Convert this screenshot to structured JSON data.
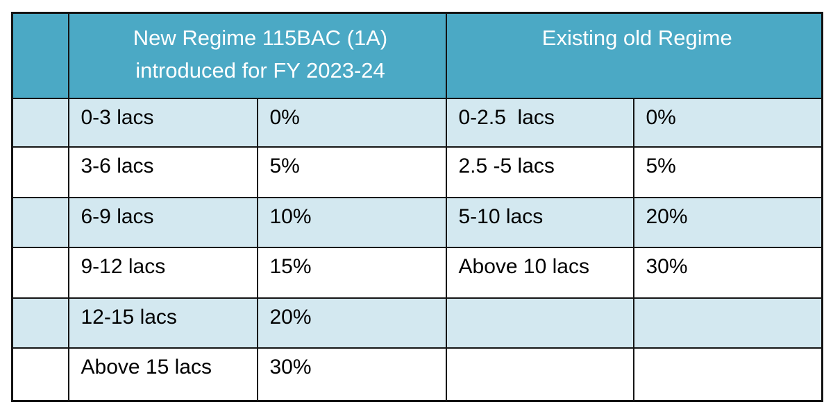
{
  "page": {
    "background_color": "#FFFFFF"
  },
  "table": {
    "colors": {
      "header_bg": "#4BA9C5",
      "header_text": "#FFFFFF",
      "row_alt_bg": "#D3E8F0",
      "row_bg": "#FFFFFF",
      "border": "#141414",
      "cell_text": "#000000"
    },
    "header": {
      "corner_label": "",
      "new_regime_line1": "New Regime 115BAC (1A)",
      "new_regime_line2": "introduced for FY 2023-24",
      "old_regime_label": "Existing old Regime"
    },
    "rows": [
      {
        "spacer": "",
        "new_slab": "0-3 lacs",
        "new_rate": "0%",
        "old_slab": "0-2.5  lacs",
        "old_rate": "0%"
      },
      {
        "spacer": "",
        "new_slab": "3-6 lacs",
        "new_rate": "5%",
        "old_slab": "2.5 -5 lacs",
        "old_rate": "5%"
      },
      {
        "spacer": "",
        "new_slab": "6-9 lacs",
        "new_rate": "10%",
        "old_slab": "5-10 lacs",
        "old_rate": "20%"
      },
      {
        "spacer": "",
        "new_slab": "9-12 lacs",
        "new_rate": "15%",
        "old_slab": "Above 10 lacs",
        "old_rate": "30%"
      },
      {
        "spacer": "",
        "new_slab": "12-15 lacs",
        "new_rate": "20%",
        "old_slab": "",
        "old_rate": ""
      },
      {
        "spacer": "",
        "new_slab": "Above 15 lacs",
        "new_rate": "30%",
        "old_slab": "",
        "old_rate": ""
      }
    ]
  }
}
